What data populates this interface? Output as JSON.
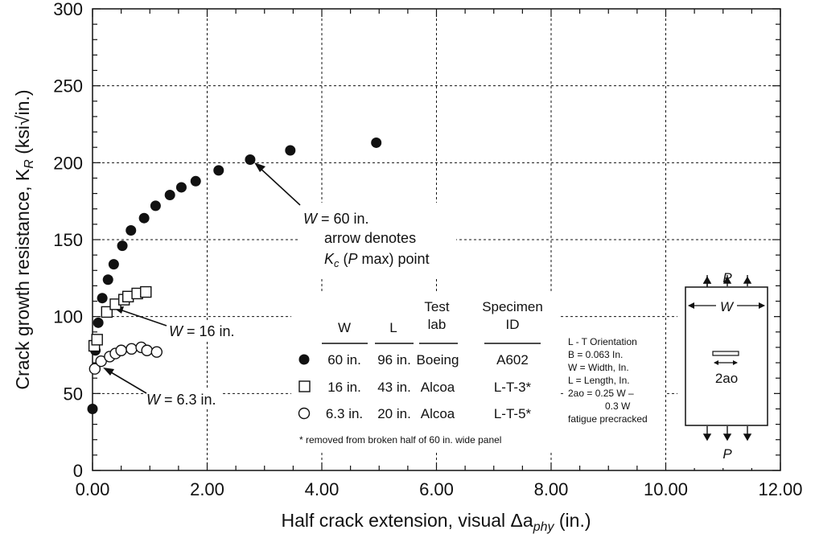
{
  "chart_data": {
    "type": "scatter",
    "xlabel_main": "Half crack extension, visual Δa",
    "xlabel_sub": "phy",
    "xlabel_end": " (in.)",
    "ylabel_main": "Crack growth resistance, K",
    "ylabel_sub": "R",
    "ylabel_end": " (ksi√in.)",
    "xlim": [
      0,
      12
    ],
    "ylim": [
      0,
      300
    ],
    "x_ticks": [
      "0.00",
      "2.00",
      "4.00",
      "6.00",
      "8.00",
      "10.00",
      "12.00"
    ],
    "y_ticks": [
      "0",
      "50",
      "100",
      "150",
      "200",
      "250",
      "300"
    ],
    "grid": "dotted",
    "series": [
      {
        "marker": "filled-circle",
        "x": [
          0.0,
          0.05,
          0.1,
          0.17,
          0.27,
          0.37,
          0.52,
          0.67,
          0.9,
          1.1,
          1.35,
          1.55,
          1.8,
          2.2,
          2.75,
          3.45,
          4.95
        ],
        "y": [
          40,
          78,
          96,
          112,
          124,
          134,
          146,
          156,
          164,
          172,
          179,
          184,
          188,
          195,
          202,
          208,
          213
        ]
      },
      {
        "marker": "open-square",
        "x": [
          0.03,
          0.08,
          0.25,
          0.4,
          0.55,
          0.62,
          0.78,
          0.93
        ],
        "y": [
          81,
          85,
          103,
          108,
          111,
          113,
          115,
          116
        ]
      },
      {
        "marker": "open-circle",
        "x": [
          0.04,
          0.15,
          0.3,
          0.4,
          0.5,
          0.68,
          0.85,
          0.95,
          1.12
        ],
        "y": [
          66,
          71,
          74,
          76,
          78,
          79,
          80,
          78,
          77
        ]
      }
    ],
    "annotations": {
      "w60_prefix": "W",
      "w60_suffix": " = 60 in.",
      "w60_line2": "arrow denotes",
      "w60_kc": "K",
      "w60_kc_sub": "c",
      "w60_line3_a": " (",
      "w60_line3_p": "P",
      "w60_line3_b": " max) point",
      "w16_prefix": "W",
      "w16_suffix": " = 16 in.",
      "w63_prefix": "W",
      "w63_suffix": " = 6.3 in."
    },
    "legend_table": {
      "headers": [
        [
          "W"
        ],
        [
          "L"
        ],
        [
          "Test",
          "lab"
        ],
        [
          "Specimen",
          "ID"
        ]
      ],
      "rows": [
        {
          "marker": "filled-circle",
          "cells": [
            "60 in.",
            "96 in.",
            "Boeing",
            "A602"
          ]
        },
        {
          "marker": "open-square",
          "cells": [
            "16 in.",
            "43 in.",
            "Alcoa",
            "L-T-3*"
          ]
        },
        {
          "marker": "open-circle",
          "cells": [
            "6.3 in.",
            "20 in.",
            "Alcoa",
            "L-T-5*"
          ]
        }
      ],
      "footnote": "* removed from broken half of 60 in. wide panel"
    },
    "notes": [
      "L - T Orientation",
      "B = 0.063 In.",
      "W = Width, In.",
      "L = Length, In.",
      "2ao = 0.25 W –",
      "0.3 W",
      "fatigue precracked"
    ],
    "specimen_sketch": {
      "load_top": "P",
      "load_bottom": "P",
      "width_label": "W",
      "crack_label": "2ao"
    }
  }
}
